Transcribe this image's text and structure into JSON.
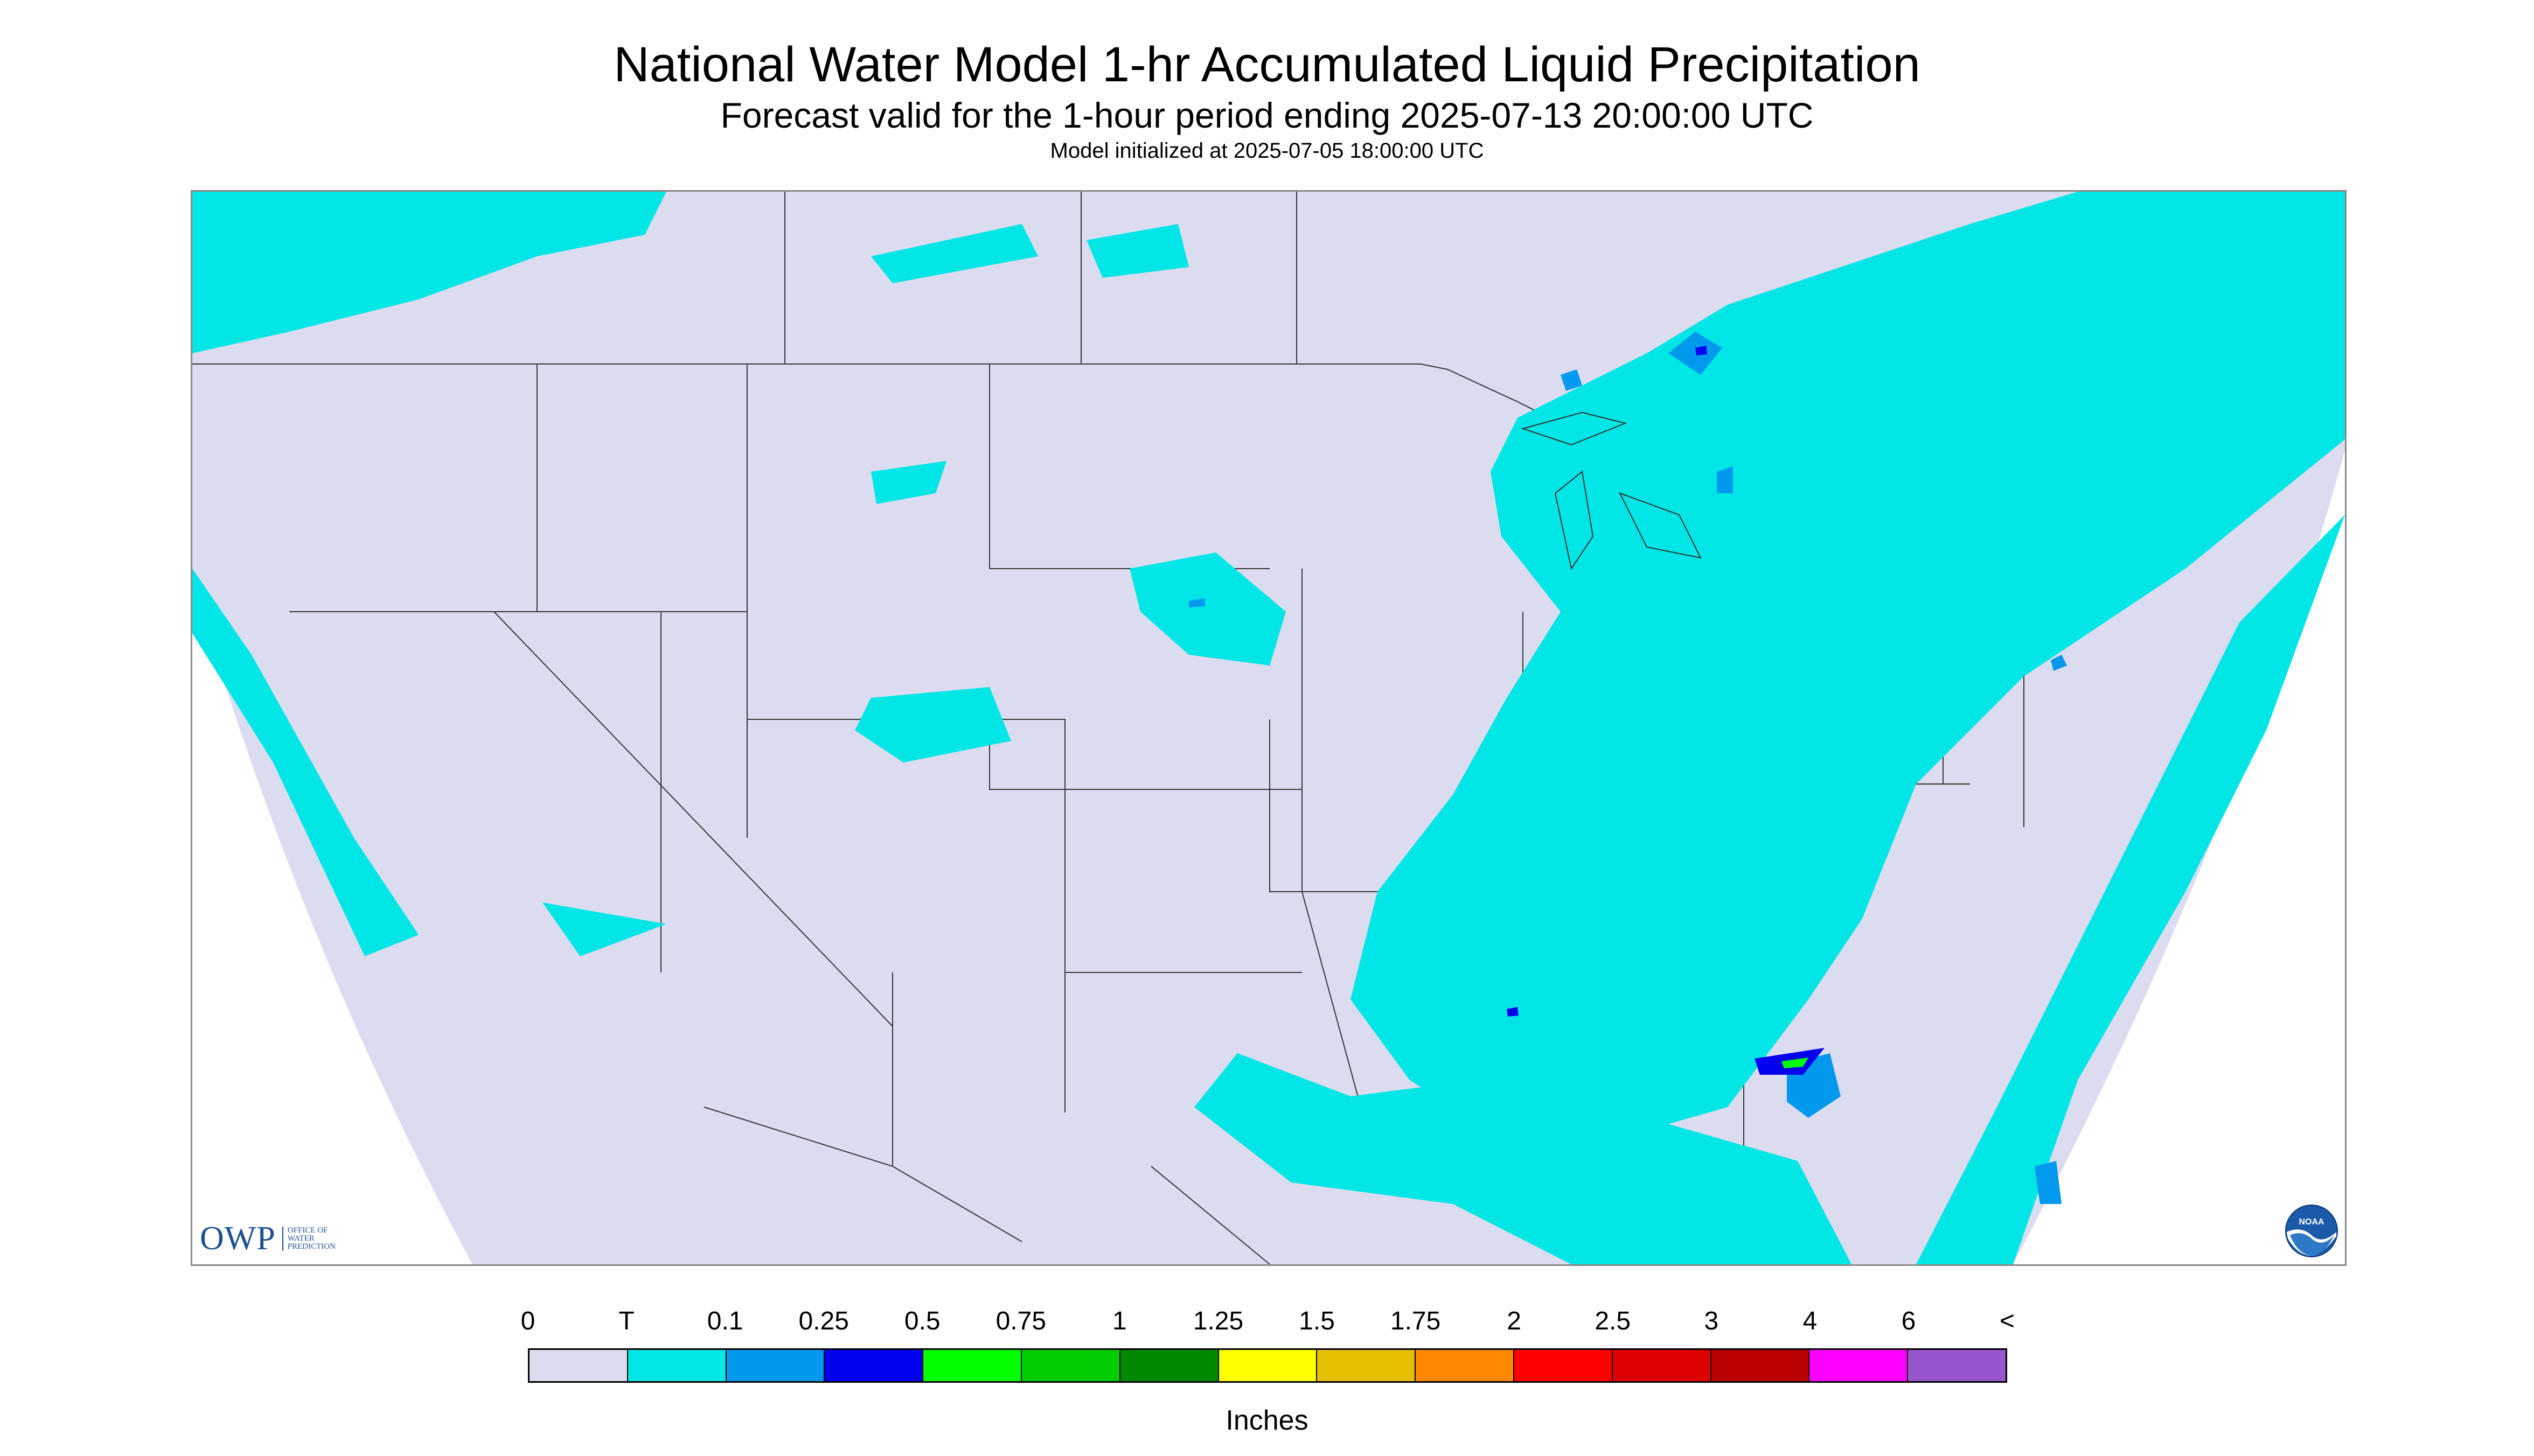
{
  "header": {
    "title": "National Water Model 1-hr Accumulated Liquid Precipitation",
    "subtitle": "Forecast valid for the 1-hour period ending 2025-07-13 20:00:00 UTC",
    "init_line": "Model initialized at 2025-07-05 18:00:00 UTC"
  },
  "map": {
    "background_color": "#dcdcf0",
    "outside_domain_color": "#ffffff",
    "border_color": "#333333",
    "logos": {
      "owp_mark": "OWP",
      "owp_text": [
        "OFFICE OF",
        "WATER",
        "PREDICTION"
      ],
      "noaa_text": "NOAA"
    }
  },
  "legend": {
    "labels": [
      "0",
      "T",
      "0.1",
      "0.25",
      "0.5",
      "0.75",
      "1",
      "1.25",
      "1.5",
      "1.75",
      "2",
      "2.5",
      "3",
      "4",
      "6",
      "<"
    ],
    "colors": [
      "#dcdcf0",
      "#00e5e5",
      "#0099ee",
      "#0000ee",
      "#00ff00",
      "#00cc00",
      "#008800",
      "#ffff00",
      "#e6bf00",
      "#ff8800",
      "#ff0000",
      "#dd0000",
      "#bb0000",
      "#ff00ff",
      "#9955cc"
    ],
    "units": "Inches"
  }
}
